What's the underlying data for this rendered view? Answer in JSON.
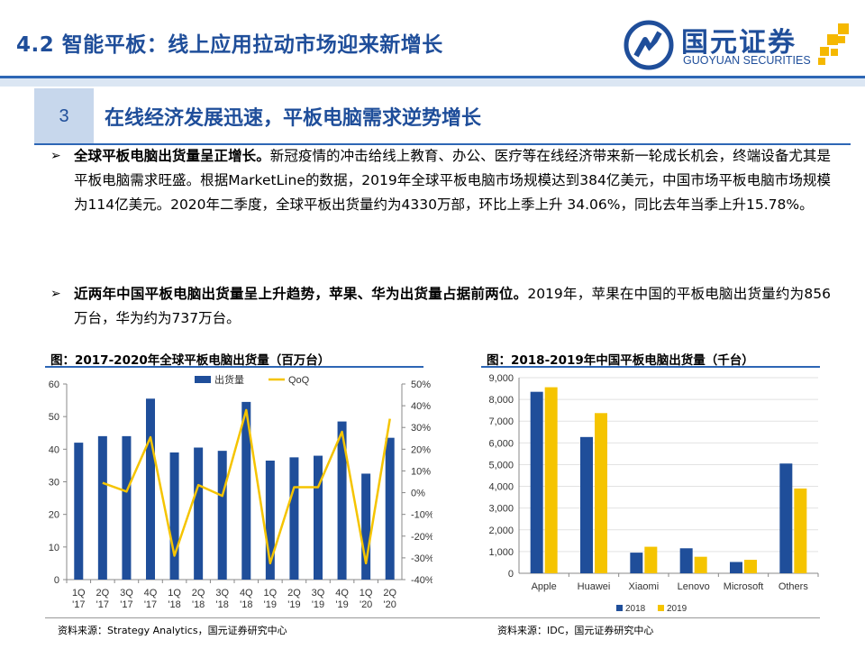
{
  "header": {
    "title": "4.2 智能平板：线上应用拉动市场迎来新增长",
    "logo_cn": "国元证券",
    "logo_en": "GUOYUAN SECURITIES"
  },
  "section": {
    "number": "3",
    "title": "在线经济发展迅速，平板电脑需求逆势增长"
  },
  "bullets": [
    {
      "bold": "全球平板电脑出货量呈正增长。",
      "text": "新冠疫情的冲击给线上教育、办公、医疗等在线经济带来新一轮成长机会，终端设备尤其是平板电脑需求旺盛。根据MarketLine的数据，2019年全球平板电脑市场规模达到384亿美元，中国市场平板电脑市场规模为114亿美元。2020年二季度，全球平板出货量约为4330万部，环比上季上升 34.06%，同比去年当季上升15.78%。"
    },
    {
      "bold": "近两年中国平板电脑出货量呈上升趋势，苹果、华为出货量占据前两位。",
      "text": "2019年，苹果在中国的平板电脑出货量约为856万台，华为约为737万台。"
    }
  ],
  "figures": {
    "left_title": "图：2017-2020年全球平板电脑出货量（百万台）",
    "right_title": "图：2018-2019年中国平板电脑出货量（千台）",
    "left_source": "资料来源：Strategy Analytics，国元证券研究中心",
    "right_source": "资料来源：IDC，国元证券研究中心"
  },
  "chart_data": [
    {
      "type": "bar+line",
      "categories": [
        [
          "1Q",
          "'17"
        ],
        [
          "2Q",
          "'17"
        ],
        [
          "3Q",
          "'17"
        ],
        [
          "4Q",
          "'17"
        ],
        [
          "1Q",
          "'18"
        ],
        [
          "2Q",
          "'18"
        ],
        [
          "3Q",
          "'18"
        ],
        [
          "4Q",
          "'18"
        ],
        [
          "1Q",
          "'19"
        ],
        [
          "2Q",
          "'19"
        ],
        [
          "3Q",
          "'19"
        ],
        [
          "4Q",
          "'19"
        ],
        [
          "1Q",
          "'20"
        ],
        [
          "2Q",
          "'20"
        ]
      ],
      "series": [
        {
          "name": "出货量",
          "kind": "bar",
          "axis": "left",
          "color": "#1f4e9a",
          "values": [
            42,
            44,
            44,
            55.5,
            39,
            40.5,
            39.5,
            54.5,
            36.5,
            37.5,
            38,
            48.5,
            32.5,
            43.5
          ]
        },
        {
          "name": "QoQ",
          "kind": "line",
          "axis": "right",
          "color": "#f5c400",
          "values": [
            null,
            4.5,
            0.5,
            25.5,
            -29,
            3.5,
            -1.5,
            38,
            -32.5,
            2.5,
            2.5,
            28,
            -32.5,
            34
          ]
        }
      ],
      "ylim_left": [
        0,
        60
      ],
      "yticks_left": [
        "0",
        "10",
        "20",
        "30",
        "40",
        "50",
        "60"
      ],
      "ylim_right": [
        -40,
        50
      ],
      "yticks_right": [
        "-40%",
        "-30%",
        "-20%",
        "-10%",
        "0%",
        "10%",
        "20%",
        "30%",
        "40%",
        "50%"
      ],
      "legend_position": "top"
    },
    {
      "type": "bar",
      "categories": [
        "Apple",
        "Huawei",
        "Xiaomi",
        "Lenovo",
        "Microsoft",
        "Others"
      ],
      "series": [
        {
          "name": "2018",
          "color": "#1f4e9a",
          "values": [
            8350,
            6270,
            950,
            1150,
            520,
            5050
          ]
        },
        {
          "name": "2019",
          "color": "#f5c400",
          "values": [
            8560,
            7370,
            1220,
            760,
            620,
            3900
          ]
        }
      ],
      "ylim": [
        0,
        9000
      ],
      "yticks": [
        "0",
        "1,000",
        "2,000",
        "3,000",
        "4,000",
        "5,000",
        "6,000",
        "7,000",
        "8,000",
        "9,000"
      ],
      "legend_position": "bottom"
    }
  ]
}
